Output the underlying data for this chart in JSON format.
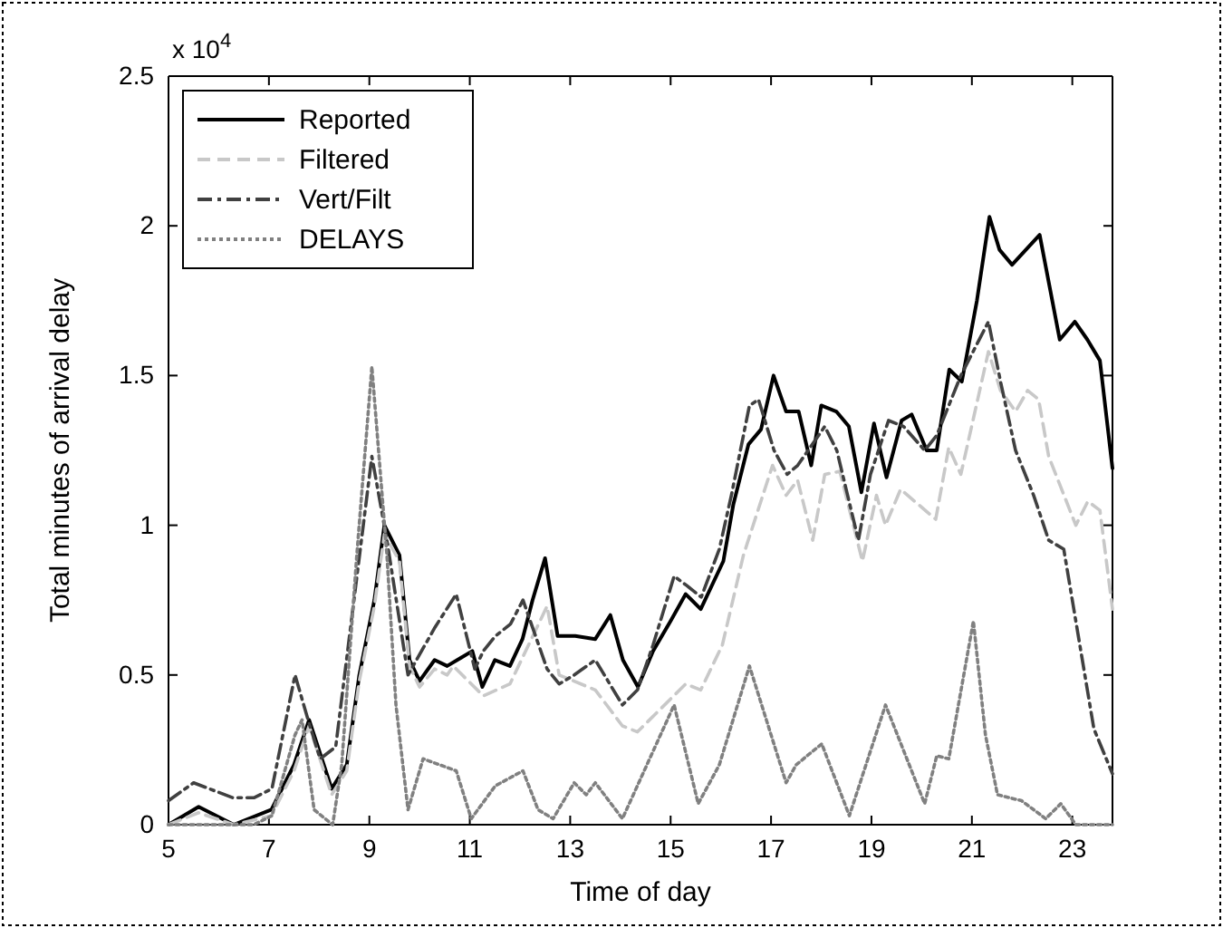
{
  "chart_data": {
    "type": "line",
    "xlabel": "Time of day",
    "ylabel": "Total minutes of arrival delay",
    "annotations": [
      "x 10$^{4}$"
    ],
    "xlim": [
      5,
      23.8
    ],
    "xticks": [
      5,
      7,
      9,
      11,
      13,
      15,
      17,
      19,
      21,
      23
    ],
    "ylim": [
      0,
      2.5
    ],
    "yticks": [
      0,
      0.5,
      1,
      1.5,
      2,
      2.5
    ],
    "legend": "top left",
    "marker": "none",
    "series": [
      {
        "name": "Reported",
        "color": "#000000",
        "line_style": "solid",
        "x": [
          5,
          5.6,
          6.3,
          7.05,
          7.5,
          7.8,
          8.25,
          8.55,
          8.8,
          9.1,
          9.3,
          9.6,
          9.8,
          10,
          10.3,
          10.55,
          11.05,
          11.25,
          11.5,
          11.8,
          12.05,
          12.25,
          12.5,
          12.75,
          13.1,
          13.5,
          13.8,
          14.05,
          14.35,
          14.65,
          15,
          15.3,
          15.6,
          16.05,
          16.25,
          16.55,
          16.8,
          17.05,
          17.3,
          17.55,
          17.8,
          18,
          18.3,
          18.55,
          18.8,
          19.05,
          19.3,
          19.6,
          19.8,
          20.1,
          20.3,
          20.55,
          20.8,
          21.1,
          21.35,
          21.55,
          21.8,
          22.35,
          22.75,
          23.05,
          23.3,
          23.55,
          23.8
        ],
        "values": [
          0,
          0.06,
          0,
          0.05,
          0.2,
          0.35,
          0.12,
          0.2,
          0.5,
          0.75,
          1,
          0.9,
          0.55,
          0.48,
          0.55,
          0.53,
          0.58,
          0.46,
          0.55,
          0.53,
          0.62,
          0.75,
          0.89,
          0.63,
          0.63,
          0.62,
          0.7,
          0.55,
          0.46,
          0.58,
          0.68,
          0.77,
          0.72,
          0.88,
          1.07,
          1.27,
          1.32,
          1.5,
          1.38,
          1.38,
          1.2,
          1.4,
          1.38,
          1.33,
          1.11,
          1.34,
          1.16,
          1.35,
          1.37,
          1.25,
          1.25,
          1.52,
          1.48,
          1.75,
          2.03,
          1.92,
          1.87,
          1.97,
          1.62,
          1.68,
          1.62,
          1.55,
          1.19
        ]
      },
      {
        "name": "Filtered",
        "color": "#c8c8c8",
        "line_style": "dashed",
        "x": [
          5,
          5.6,
          6.3,
          7.05,
          7.5,
          7.8,
          8.25,
          8.55,
          8.8,
          9.1,
          9.3,
          9.6,
          9.8,
          10,
          10.3,
          10.55,
          10.67,
          11.27,
          11.8,
          12.54,
          12.78,
          13.5,
          14.04,
          14.34,
          15,
          15.3,
          15.6,
          16.03,
          16.45,
          17.03,
          17.3,
          17.53,
          17.83,
          18.07,
          18.37,
          18.82,
          19.1,
          19.28,
          19.58,
          20.28,
          20.54,
          20.78,
          21.33,
          21.57,
          21.87,
          22.11,
          22.33,
          22.53,
          23.07,
          23.31,
          23.55,
          23.8
        ],
        "values": [
          0,
          0.04,
          0,
          0.03,
          0.18,
          0.33,
          0.1,
          0.18,
          0.48,
          0.73,
          0.97,
          0.88,
          0.53,
          0.46,
          0.52,
          0.5,
          0.53,
          0.43,
          0.47,
          0.73,
          0.5,
          0.45,
          0.33,
          0.31,
          0.42,
          0.47,
          0.45,
          0.6,
          0.9,
          1.2,
          1.1,
          1.15,
          0.95,
          1.17,
          1.18,
          0.88,
          1.1,
          1,
          1.12,
          1.02,
          1.26,
          1.17,
          1.58,
          1.45,
          1.38,
          1.45,
          1.42,
          1.23,
          1,
          1.08,
          1.05,
          0.72
        ]
      },
      {
        "name": "Vert/Filt",
        "color": "#404040",
        "line_style": "dashdot",
        "x": [
          5,
          5.5,
          6.28,
          6.7,
          7.06,
          7.52,
          7.78,
          8.02,
          8.33,
          9.05,
          9.35,
          9.77,
          10.31,
          10.73,
          11.1,
          11.27,
          11.51,
          11.81,
          12.06,
          12.54,
          12.78,
          13.08,
          13.5,
          14.04,
          14.34,
          14.65,
          15.07,
          15.31,
          15.61,
          15.97,
          16.21,
          16.57,
          16.75,
          17.06,
          17.32,
          17.53,
          18.07,
          18.31,
          18.74,
          18.98,
          19.34,
          19.64,
          20.06,
          20.3,
          20.78,
          21.33,
          21.57,
          21.87,
          22.23,
          22.53,
          22.83,
          23.13,
          23.43,
          23.8
        ],
        "values": [
          0.08,
          0.14,
          0.09,
          0.09,
          0.12,
          0.5,
          0.35,
          0.22,
          0.26,
          1.23,
          0.95,
          0.5,
          0.66,
          0.77,
          0.52,
          0.58,
          0.63,
          0.67,
          0.75,
          0.52,
          0.47,
          0.5,
          0.55,
          0.4,
          0.45,
          0.6,
          0.83,
          0.8,
          0.76,
          0.92,
          1.1,
          1.4,
          1.42,
          1.25,
          1.17,
          1.2,
          1.33,
          1.25,
          0.95,
          1.17,
          1.35,
          1.33,
          1.25,
          1.3,
          1.5,
          1.68,
          1.48,
          1.25,
          1.1,
          0.95,
          0.92,
          0.62,
          0.32,
          0.17
        ]
      },
      {
        "name": "DELAYS",
        "color": "#808080",
        "line_style": "dotted",
        "x": [
          5,
          6.7,
          7.06,
          7.52,
          7.66,
          7.9,
          8.27,
          8.45,
          8.75,
          9.05,
          9.35,
          9.53,
          9.77,
          10.07,
          10.73,
          11.03,
          11.51,
          12.06,
          12.36,
          12.66,
          13.08,
          13.32,
          13.5,
          14.04,
          15.07,
          15.55,
          15.97,
          16.57,
          17.3,
          17.5,
          18.01,
          18.56,
          19.28,
          20.06,
          20.3,
          20.54,
          21.03,
          21.27,
          21.51,
          21.99,
          22.47,
          22.77,
          23.07,
          23.8
        ],
        "values": [
          0,
          0,
          0.03,
          0.3,
          0.35,
          0.05,
          0,
          0.2,
          0.9,
          1.53,
          0.9,
          0.4,
          0.05,
          0.22,
          0.18,
          0.02,
          0.13,
          0.18,
          0.05,
          0.02,
          0.14,
          0.1,
          0.14,
          0.02,
          0.4,
          0.07,
          0.2,
          0.53,
          0.14,
          0.2,
          0.27,
          0.03,
          0.4,
          0.07,
          0.23,
          0.22,
          0.68,
          0.3,
          0.1,
          0.08,
          0.02,
          0.07,
          0,
          0
        ]
      }
    ]
  }
}
